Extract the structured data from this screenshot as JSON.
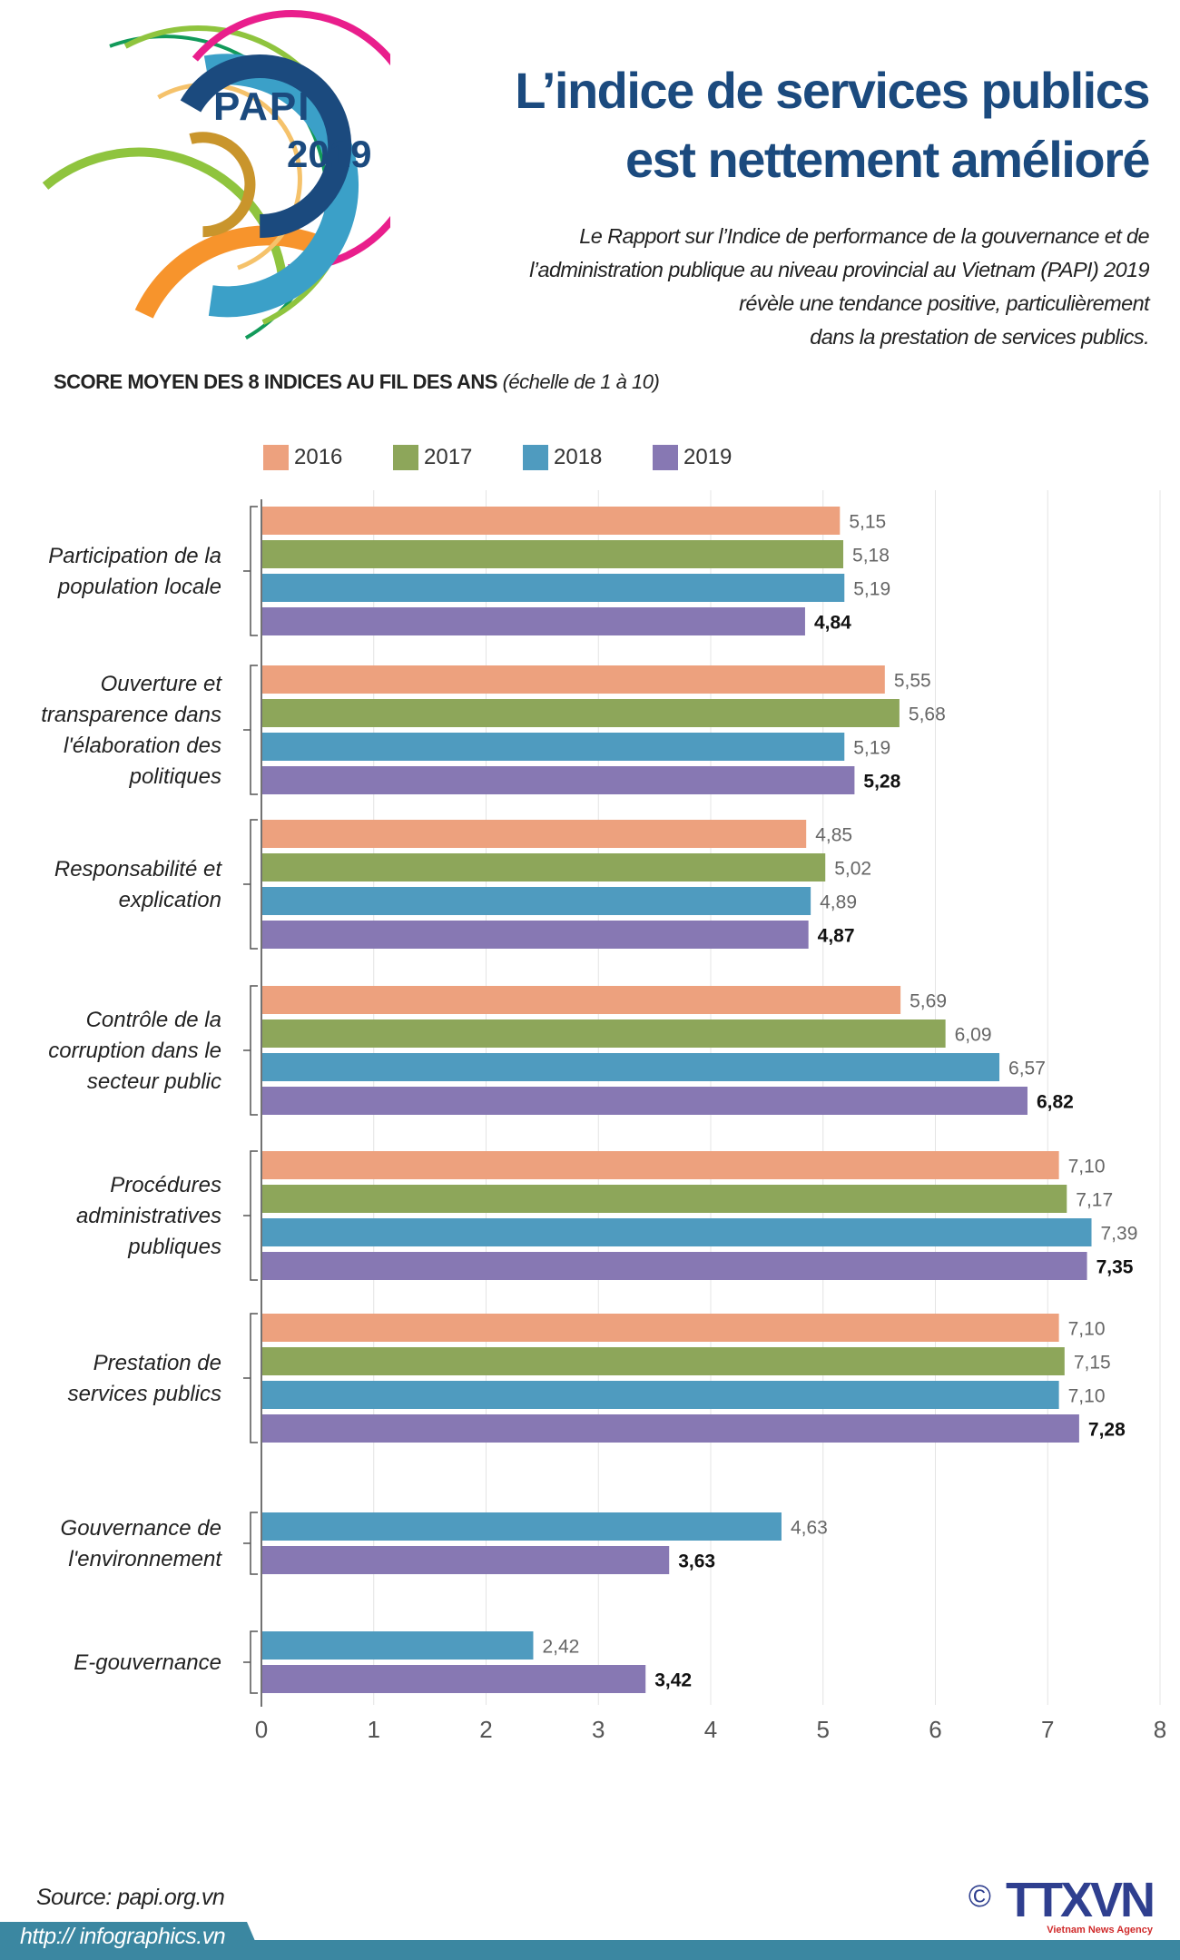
{
  "logo": {
    "line1": "PAPI",
    "line2": "2019"
  },
  "header": {
    "title_lines": [
      "L’indice de services publics",
      "est nettement amélioré"
    ],
    "intro_lines": [
      "Le Rapport sur l’Indice de performance de la gouvernance et de",
      "l’administration publique au niveau provincial au Vietnam (PAPI) 2019",
      "révèle  une tendance positive, particulièrement",
      "dans la prestation de services publics."
    ]
  },
  "chart_heading": {
    "main": "SCORE MOYEN DES 8 INDICES AU FIL DES ANS",
    "note": "(échelle de 1 à 10)"
  },
  "chart_data": {
    "type": "bar",
    "orientation": "horizontal",
    "title": "SCORE MOYEN DES 8 INDICES AU FIL DES ANS (échelle de 1 à 10)",
    "xlim": [
      0,
      8
    ],
    "xticks": [
      0,
      1,
      2,
      3,
      4,
      5,
      6,
      7,
      8
    ],
    "grid": true,
    "legend_position": "top",
    "series": [
      {
        "name": "2016",
        "color": "#eda17e"
      },
      {
        "name": "2017",
        "color": "#8da65a"
      },
      {
        "name": "2018",
        "color": "#4f9bbf"
      },
      {
        "name": "2019",
        "color": "#8778b3"
      }
    ],
    "categories": [
      {
        "label_lines": [
          "Participation de la",
          "population locale"
        ],
        "values": {
          "2016": 5.15,
          "2017": 5.18,
          "2018": 5.19,
          "2019": 4.84
        }
      },
      {
        "label_lines": [
          "Ouverture et",
          "transparence dans",
          "l'élaboration des",
          "politiques"
        ],
        "values": {
          "2016": 5.55,
          "2017": 5.68,
          "2018": 5.19,
          "2019": 5.28
        }
      },
      {
        "label_lines": [
          "Responsabilité et",
          "explication"
        ],
        "values": {
          "2016": 4.85,
          "2017": 5.02,
          "2018": 4.89,
          "2019": 4.87
        }
      },
      {
        "label_lines": [
          "Contrôle de la",
          "corruption dans le",
          "secteur public"
        ],
        "values": {
          "2016": 5.69,
          "2017": 6.09,
          "2018": 6.57,
          "2019": 6.82
        }
      },
      {
        "label_lines": [
          "Procédures",
          "administratives",
          "publiques"
        ],
        "values": {
          "2016": 7.1,
          "2017": 7.17,
          "2018": 7.39,
          "2019": 7.35
        }
      },
      {
        "label_lines": [
          "Prestation de",
          "services publics"
        ],
        "values": {
          "2016": 7.1,
          "2017": 7.15,
          "2018": 7.1,
          "2019": 7.28
        }
      },
      {
        "label_lines": [
          "Gouvernance de",
          "l'environnement"
        ],
        "values": {
          "2018": 4.63,
          "2019": 3.63
        }
      },
      {
        "label_lines": [
          "E-gouvernance"
        ],
        "values": {
          "2018": 2.42,
          "2019": 3.42
        }
      }
    ]
  },
  "footer": {
    "source": "Source: papi.org.vn",
    "url": "http:// infographics.vn",
    "copyright": "©",
    "brand": "TTXVN",
    "brand_sub": "Vietnam News Agency"
  }
}
